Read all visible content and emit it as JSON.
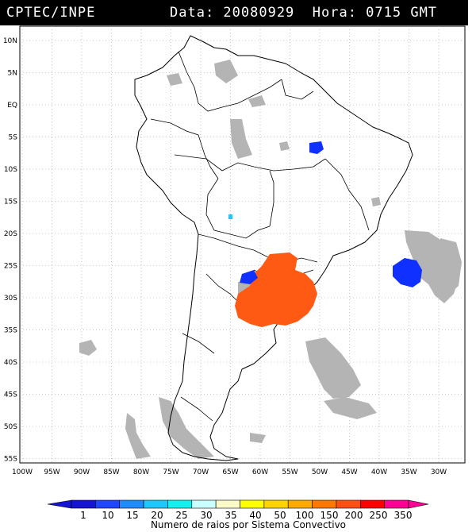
{
  "header": {
    "source": "CPTEC/INPE",
    "datetime": "Data: 20080929  Hora: 0715 GMT"
  },
  "map": {
    "lat_labels": [
      "10N",
      "5N",
      "EQ",
      "5S",
      "10S",
      "15S",
      "20S",
      "25S",
      "30S",
      "35S",
      "40S",
      "45S",
      "50S",
      "55S"
    ],
    "lon_labels": [
      "100W",
      "95W",
      "90W",
      "85W",
      "80W",
      "75W",
      "70W",
      "65W",
      "60W",
      "55W",
      "50W",
      "45W",
      "40W",
      "35W",
      "30W"
    ],
    "grid": true,
    "colors": {
      "land_outline": "#000000",
      "cloud_cover": "#b4b4b4",
      "low_activity": "#1030ff",
      "high_activity": "#ff5a14"
    }
  },
  "colorbar": {
    "labels": [
      "1",
      "10",
      "15",
      "20",
      "25",
      "30",
      "35",
      "40",
      "50",
      "100",
      "150",
      "200",
      "250",
      "350"
    ],
    "colors": [
      "#1414d2",
      "#1e46ff",
      "#1e8cff",
      "#1ec8ff",
      "#14f0f0",
      "#c8ffff",
      "#fafac8",
      "#ffff00",
      "#ffd200",
      "#ffaa00",
      "#ff7800",
      "#ff5014",
      "#ff0000",
      "#ff0096"
    ],
    "title": "Numero de raios por Sistema Convectivo"
  }
}
